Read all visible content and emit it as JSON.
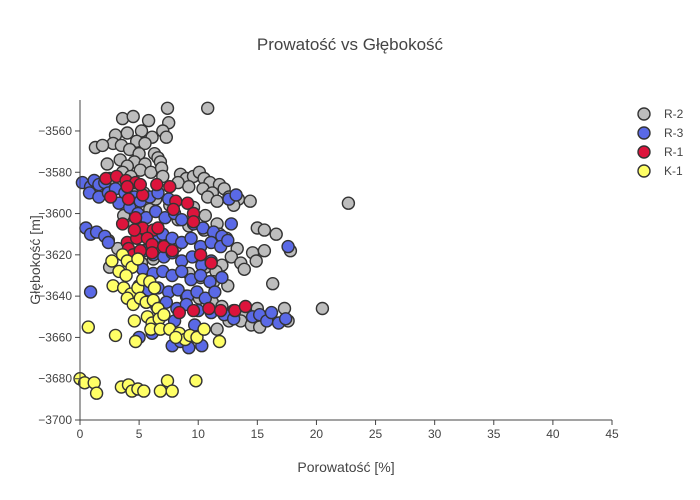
{
  "chart_data": {
    "type": "scatter",
    "title": "Prowatość vs Głębokość",
    "xlabel": "Porowatość [%]",
    "ylabel": "Głębokość [m]",
    "xlim": [
      0,
      45
    ],
    "ylim": [
      -3700,
      -3545
    ],
    "x_ticks": [
      0,
      5,
      10,
      15,
      20,
      25,
      30,
      35,
      40,
      45
    ],
    "y_ticks": [
      -3700,
      -3680,
      -3660,
      -3640,
      -3620,
      -3600,
      -3580,
      -3560
    ],
    "grid": false,
    "legend_position": "top-right",
    "series": [
      {
        "name": "R-2",
        "color": "#bdbdbd",
        "points": [
          [
            3.6,
            -3554
          ],
          [
            4.5,
            -3553
          ],
          [
            5.8,
            -3555
          ],
          [
            7.4,
            -3549
          ],
          [
            10.8,
            -3549
          ],
          [
            7.5,
            -3556
          ],
          [
            3.0,
            -3562
          ],
          [
            4.0,
            -3561
          ],
          [
            5.2,
            -3560
          ],
          [
            6.1,
            -3563
          ],
          [
            7.0,
            -3560
          ],
          [
            7.3,
            -3563
          ],
          [
            2.8,
            -3566
          ],
          [
            3.5,
            -3567
          ],
          [
            4.8,
            -3565
          ],
          [
            5.5,
            -3566
          ],
          [
            1.3,
            -3568
          ],
          [
            1.9,
            -3567
          ],
          [
            4.2,
            -3569
          ],
          [
            5.0,
            -3571
          ],
          [
            6.3,
            -3571
          ],
          [
            6.6,
            -3573
          ],
          [
            3.4,
            -3574
          ],
          [
            4.6,
            -3575
          ],
          [
            5.5,
            -3576
          ],
          [
            6.8,
            -3575
          ],
          [
            2.3,
            -3576
          ],
          [
            4.0,
            -3577
          ],
          [
            5.1,
            -3579
          ],
          [
            6.0,
            -3580
          ],
          [
            6.9,
            -3578
          ],
          [
            3.6,
            -3580
          ],
          [
            4.3,
            -3582
          ],
          [
            7.0,
            -3582
          ],
          [
            8.5,
            -3581
          ],
          [
            9.0,
            -3583
          ],
          [
            9.6,
            -3582
          ],
          [
            10.1,
            -3580
          ],
          [
            10.5,
            -3583
          ],
          [
            11.0,
            -3585
          ],
          [
            11.8,
            -3586
          ],
          [
            12.2,
            -3588
          ],
          [
            8.3,
            -3585
          ],
          [
            9.2,
            -3587
          ],
          [
            10.4,
            -3588
          ],
          [
            11.2,
            -3590
          ],
          [
            12.6,
            -3592
          ],
          [
            13.4,
            -3593
          ],
          [
            14.4,
            -3594
          ],
          [
            10.8,
            -3592
          ],
          [
            11.6,
            -3594
          ],
          [
            13.0,
            -3596
          ],
          [
            22.7,
            -3595
          ],
          [
            9.6,
            -3597
          ],
          [
            10.6,
            -3601
          ],
          [
            11.6,
            -3605
          ],
          [
            8.3,
            -3603
          ],
          [
            9.2,
            -3606
          ],
          [
            10.5,
            -3608
          ],
          [
            11.8,
            -3610
          ],
          [
            12.4,
            -3612
          ],
          [
            15.0,
            -3607
          ],
          [
            15.6,
            -3608
          ],
          [
            16.6,
            -3610
          ],
          [
            13.3,
            -3617
          ],
          [
            14.6,
            -3619
          ],
          [
            15.6,
            -3618
          ],
          [
            17.8,
            -3618
          ],
          [
            12.8,
            -3621
          ],
          [
            13.6,
            -3624
          ],
          [
            14.9,
            -3623
          ],
          [
            12.0,
            -3625
          ],
          [
            13.9,
            -3627
          ],
          [
            10.6,
            -3626
          ],
          [
            11.5,
            -3628
          ],
          [
            9.2,
            -3629
          ],
          [
            10.2,
            -3631
          ],
          [
            11.3,
            -3633
          ],
          [
            12.5,
            -3635
          ],
          [
            16.3,
            -3634
          ],
          [
            9.0,
            -3640
          ],
          [
            10.1,
            -3641
          ],
          [
            11.2,
            -3643
          ],
          [
            12.0,
            -3645
          ],
          [
            13.0,
            -3647
          ],
          [
            14.0,
            -3649
          ],
          [
            15.0,
            -3646
          ],
          [
            17.3,
            -3646
          ],
          [
            20.5,
            -3646
          ],
          [
            13.6,
            -3652
          ],
          [
            14.5,
            -3654
          ],
          [
            15.2,
            -3655
          ],
          [
            17.6,
            -3652
          ],
          [
            11.6,
            -3656
          ],
          [
            12.6,
            -3652
          ],
          [
            2.4,
            -3613
          ],
          [
            3.2,
            -3617
          ],
          [
            4.1,
            -3620
          ],
          [
            2.5,
            -3626
          ],
          [
            5.2,
            -3624
          ],
          [
            6.2,
            -3622
          ],
          [
            7.3,
            -3619
          ],
          [
            8.1,
            -3616
          ],
          [
            6.8,
            -3612
          ],
          [
            5.6,
            -3609
          ],
          [
            4.6,
            -3605
          ],
          [
            3.7,
            -3601
          ],
          [
            5.9,
            -3598
          ],
          [
            7.6,
            -3596
          ],
          [
            6.4,
            -3593
          ],
          [
            5.4,
            -3590
          ],
          [
            4.5,
            -3587
          ],
          [
            3.3,
            -3585
          ],
          [
            2.5,
            -3583
          ]
        ]
      },
      {
        "name": "R-3",
        "color": "#5a69e6",
        "points": [
          [
            0.2,
            -3585
          ],
          [
            0.9,
            -3587
          ],
          [
            1.2,
            -3584
          ],
          [
            1.6,
            -3586
          ],
          [
            2.1,
            -3585
          ],
          [
            0.8,
            -3590
          ],
          [
            1.6,
            -3592
          ],
          [
            2.4,
            -3590
          ],
          [
            3.0,
            -3588
          ],
          [
            3.8,
            -3590
          ],
          [
            4.6,
            -3592
          ],
          [
            3.3,
            -3595
          ],
          [
            4.2,
            -3597
          ],
          [
            5.1,
            -3594
          ],
          [
            5.9,
            -3592
          ],
          [
            6.6,
            -3590
          ],
          [
            7.5,
            -3593
          ],
          [
            0.5,
            -3607
          ],
          [
            0.9,
            -3610
          ],
          [
            1.4,
            -3609
          ],
          [
            2.1,
            -3611
          ],
          [
            2.4,
            -3614
          ],
          [
            4.9,
            -3600
          ],
          [
            5.6,
            -3602
          ],
          [
            6.4,
            -3599
          ],
          [
            7.2,
            -3602
          ],
          [
            8.0,
            -3600
          ],
          [
            8.6,
            -3603
          ],
          [
            9.6,
            -3605
          ],
          [
            10.4,
            -3607
          ],
          [
            11.3,
            -3609
          ],
          [
            12.0,
            -3611
          ],
          [
            12.8,
            -3605
          ],
          [
            12.6,
            -3593
          ],
          [
            13.2,
            -3591
          ],
          [
            5.6,
            -3610
          ],
          [
            6.3,
            -3612
          ],
          [
            7.0,
            -3610
          ],
          [
            7.8,
            -3612
          ],
          [
            8.6,
            -3614
          ],
          [
            9.4,
            -3612
          ],
          [
            10.2,
            -3616
          ],
          [
            11.1,
            -3614
          ],
          [
            11.9,
            -3616
          ],
          [
            12.5,
            -3613
          ],
          [
            5.4,
            -3618
          ],
          [
            6.2,
            -3620
          ],
          [
            7.1,
            -3621
          ],
          [
            7.8,
            -3619
          ],
          [
            8.6,
            -3623
          ],
          [
            9.5,
            -3621
          ],
          [
            10.3,
            -3625
          ],
          [
            11.1,
            -3623
          ],
          [
            5.3,
            -3627
          ],
          [
            6.2,
            -3629
          ],
          [
            7.0,
            -3628
          ],
          [
            7.8,
            -3630
          ],
          [
            8.6,
            -3628
          ],
          [
            9.4,
            -3632
          ],
          [
            10.2,
            -3630
          ],
          [
            11.0,
            -3633
          ],
          [
            12.0,
            -3631
          ],
          [
            5.0,
            -3635
          ],
          [
            5.8,
            -3637
          ],
          [
            6.6,
            -3636
          ],
          [
            7.5,
            -3638
          ],
          [
            8.3,
            -3637
          ],
          [
            9.1,
            -3640
          ],
          [
            9.9,
            -3638
          ],
          [
            10.6,
            -3641
          ],
          [
            11.4,
            -3638
          ],
          [
            5.6,
            -3643
          ],
          [
            6.5,
            -3645
          ],
          [
            7.3,
            -3643
          ],
          [
            8.2,
            -3646
          ],
          [
            9.0,
            -3644
          ],
          [
            10.0,
            -3647
          ],
          [
            11.1,
            -3648
          ],
          [
            12.2,
            -3649
          ],
          [
            13.0,
            -3651
          ],
          [
            14.6,
            -3650
          ],
          [
            15.2,
            -3649
          ],
          [
            15.8,
            -3652
          ],
          [
            16.2,
            -3648
          ],
          [
            16.8,
            -3653
          ],
          [
            17.4,
            -3651
          ],
          [
            17.6,
            -3616
          ],
          [
            0.9,
            -3638
          ],
          [
            7.8,
            -3664
          ],
          [
            8.5,
            -3662
          ],
          [
            9.2,
            -3665
          ],
          [
            10.3,
            -3664
          ],
          [
            5.0,
            -3660
          ],
          [
            6.1,
            -3658
          ],
          [
            8.0,
            -3652
          ],
          [
            9.7,
            -3654
          ]
        ]
      },
      {
        "name": "R-1",
        "color": "#dc143c",
        "points": [
          [
            2.2,
            -3583
          ],
          [
            3.1,
            -3582
          ],
          [
            3.9,
            -3584
          ],
          [
            4.7,
            -3585
          ],
          [
            6.5,
            -3586
          ],
          [
            7.6,
            -3587
          ],
          [
            2.6,
            -3592
          ],
          [
            4.1,
            -3593
          ],
          [
            5.3,
            -3591
          ],
          [
            8.1,
            -3594
          ],
          [
            9.1,
            -3595
          ],
          [
            9.6,
            -3600
          ],
          [
            7.9,
            -3598
          ],
          [
            4.7,
            -3602
          ],
          [
            3.6,
            -3605
          ],
          [
            5.3,
            -3607
          ],
          [
            6.2,
            -3608
          ],
          [
            6.6,
            -3607
          ],
          [
            9.6,
            -3604
          ],
          [
            4.0,
            -3614
          ],
          [
            4.8,
            -3612
          ],
          [
            5.7,
            -3612
          ],
          [
            6.1,
            -3615
          ],
          [
            7.1,
            -3616
          ],
          [
            7.8,
            -3618
          ],
          [
            4.1,
            -3617
          ],
          [
            4.5,
            -3620
          ],
          [
            5.1,
            -3618
          ],
          [
            6.1,
            -3619
          ],
          [
            10.2,
            -3620
          ],
          [
            11.1,
            -3624
          ],
          [
            10.9,
            -3646
          ],
          [
            11.9,
            -3647
          ],
          [
            13.1,
            -3647
          ],
          [
            14.0,
            -3645
          ],
          [
            8.4,
            -3648
          ],
          [
            9.6,
            -3647
          ],
          [
            4.6,
            -3608
          ],
          [
            5.1,
            -3586
          ],
          [
            4.0,
            -3587
          ]
        ]
      },
      {
        "name": "K-1",
        "color": "#ffff66",
        "points": [
          [
            0.0,
            -3680
          ],
          [
            0.4,
            -3682
          ],
          [
            1.2,
            -3682
          ],
          [
            1.4,
            -3687
          ],
          [
            3.5,
            -3684
          ],
          [
            4.1,
            -3683
          ],
          [
            4.4,
            -3686
          ],
          [
            4.9,
            -3685
          ],
          [
            5.4,
            -3686
          ],
          [
            6.8,
            -3686
          ],
          [
            7.4,
            -3681
          ],
          [
            7.8,
            -3686
          ],
          [
            9.8,
            -3681
          ],
          [
            2.7,
            -3623
          ],
          [
            3.6,
            -3620
          ],
          [
            4.0,
            -3623
          ],
          [
            4.4,
            -3626
          ],
          [
            4.9,
            -3622
          ],
          [
            3.3,
            -3628
          ],
          [
            3.9,
            -3630
          ],
          [
            2.8,
            -3635
          ],
          [
            3.7,
            -3636
          ],
          [
            4.3,
            -3639
          ],
          [
            4.9,
            -3636
          ],
          [
            5.3,
            -3632
          ],
          [
            5.9,
            -3633
          ],
          [
            6.3,
            -3636
          ],
          [
            4.0,
            -3641
          ],
          [
            4.5,
            -3644
          ],
          [
            5.1,
            -3641
          ],
          [
            5.6,
            -3643
          ],
          [
            6.2,
            -3642
          ],
          [
            6.6,
            -3646
          ],
          [
            5.7,
            -3650
          ],
          [
            6.1,
            -3653
          ],
          [
            6.7,
            -3651
          ],
          [
            7.1,
            -3649
          ],
          [
            4.6,
            -3652
          ],
          [
            0.7,
            -3655
          ],
          [
            6.0,
            -3656
          ],
          [
            6.8,
            -3656
          ],
          [
            7.6,
            -3656
          ],
          [
            8.4,
            -3658
          ],
          [
            8.9,
            -3661
          ],
          [
            9.3,
            -3659
          ],
          [
            9.9,
            -3660
          ],
          [
            10.5,
            -3656
          ],
          [
            11.8,
            -3662
          ],
          [
            3.0,
            -3659
          ],
          [
            4.7,
            -3662
          ],
          [
            8.1,
            -3660
          ]
        ]
      }
    ]
  }
}
